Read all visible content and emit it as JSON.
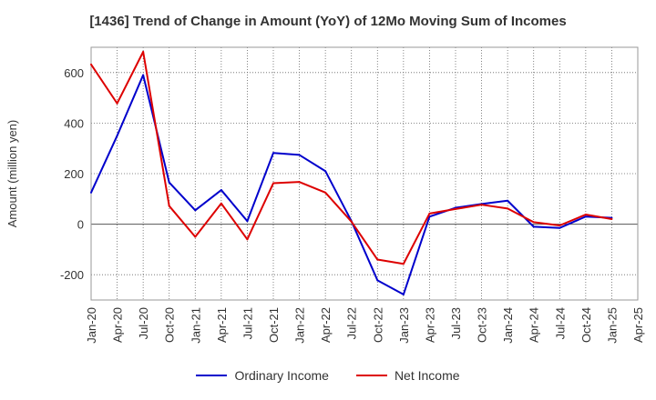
{
  "chart_data": {
    "type": "line",
    "title": "[1436]  Trend of Change in Amount (YoY) of 12Mo Moving Sum of Incomes",
    "ylabel": "Amount (million yen)",
    "xlabel": "",
    "x": [
      "Jan-20",
      "Apr-20",
      "Jul-20",
      "Oct-20",
      "Jan-21",
      "Apr-21",
      "Jul-21",
      "Oct-21",
      "Jan-22",
      "Apr-22",
      "Jul-22",
      "Oct-22",
      "Jan-23",
      "Apr-23",
      "Jul-23",
      "Oct-23",
      "Jan-24",
      "Apr-24",
      "Jul-24",
      "Oct-24",
      "Jan-25",
      "Apr-25"
    ],
    "ylim": [
      -300,
      700
    ],
    "yticks": [
      -200,
      0,
      200,
      400,
      600
    ],
    "grid": true,
    "legend_position": "bottom",
    "series": [
      {
        "name": "Ordinary Income",
        "color": "#0000cc",
        "values": [
          125,
          350,
          590,
          165,
          55,
          135,
          12,
          282,
          274,
          210,
          12,
          -222,
          -278,
          30,
          65,
          80,
          93,
          -10,
          -15,
          30,
          25,
          null
        ]
      },
      {
        "name": "Net Income",
        "color": "#dd0000",
        "values": [
          632,
          478,
          682,
          72,
          -50,
          82,
          -60,
          162,
          167,
          125,
          10,
          -140,
          -157,
          42,
          60,
          77,
          62,
          8,
          -5,
          38,
          20,
          null
        ]
      }
    ]
  }
}
